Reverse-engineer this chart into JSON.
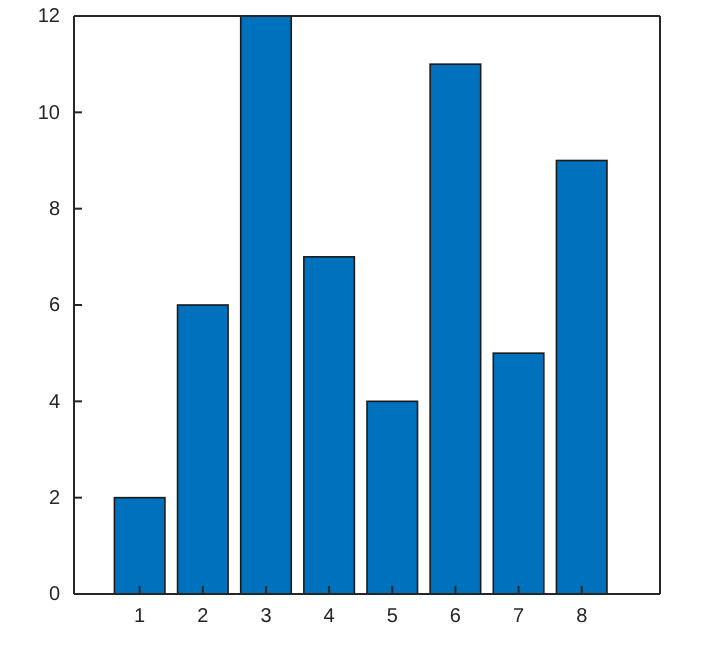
{
  "chart_data": {
    "type": "bar",
    "categories": [
      "1",
      "2",
      "3",
      "4",
      "5",
      "6",
      "7",
      "8"
    ],
    "values": [
      2,
      6,
      12,
      7,
      4,
      11,
      5,
      9
    ],
    "color": "#0072bd",
    "ylim": [
      0,
      12
    ],
    "yticks": [
      0,
      2,
      4,
      6,
      8,
      10,
      12
    ],
    "grid": false
  }
}
